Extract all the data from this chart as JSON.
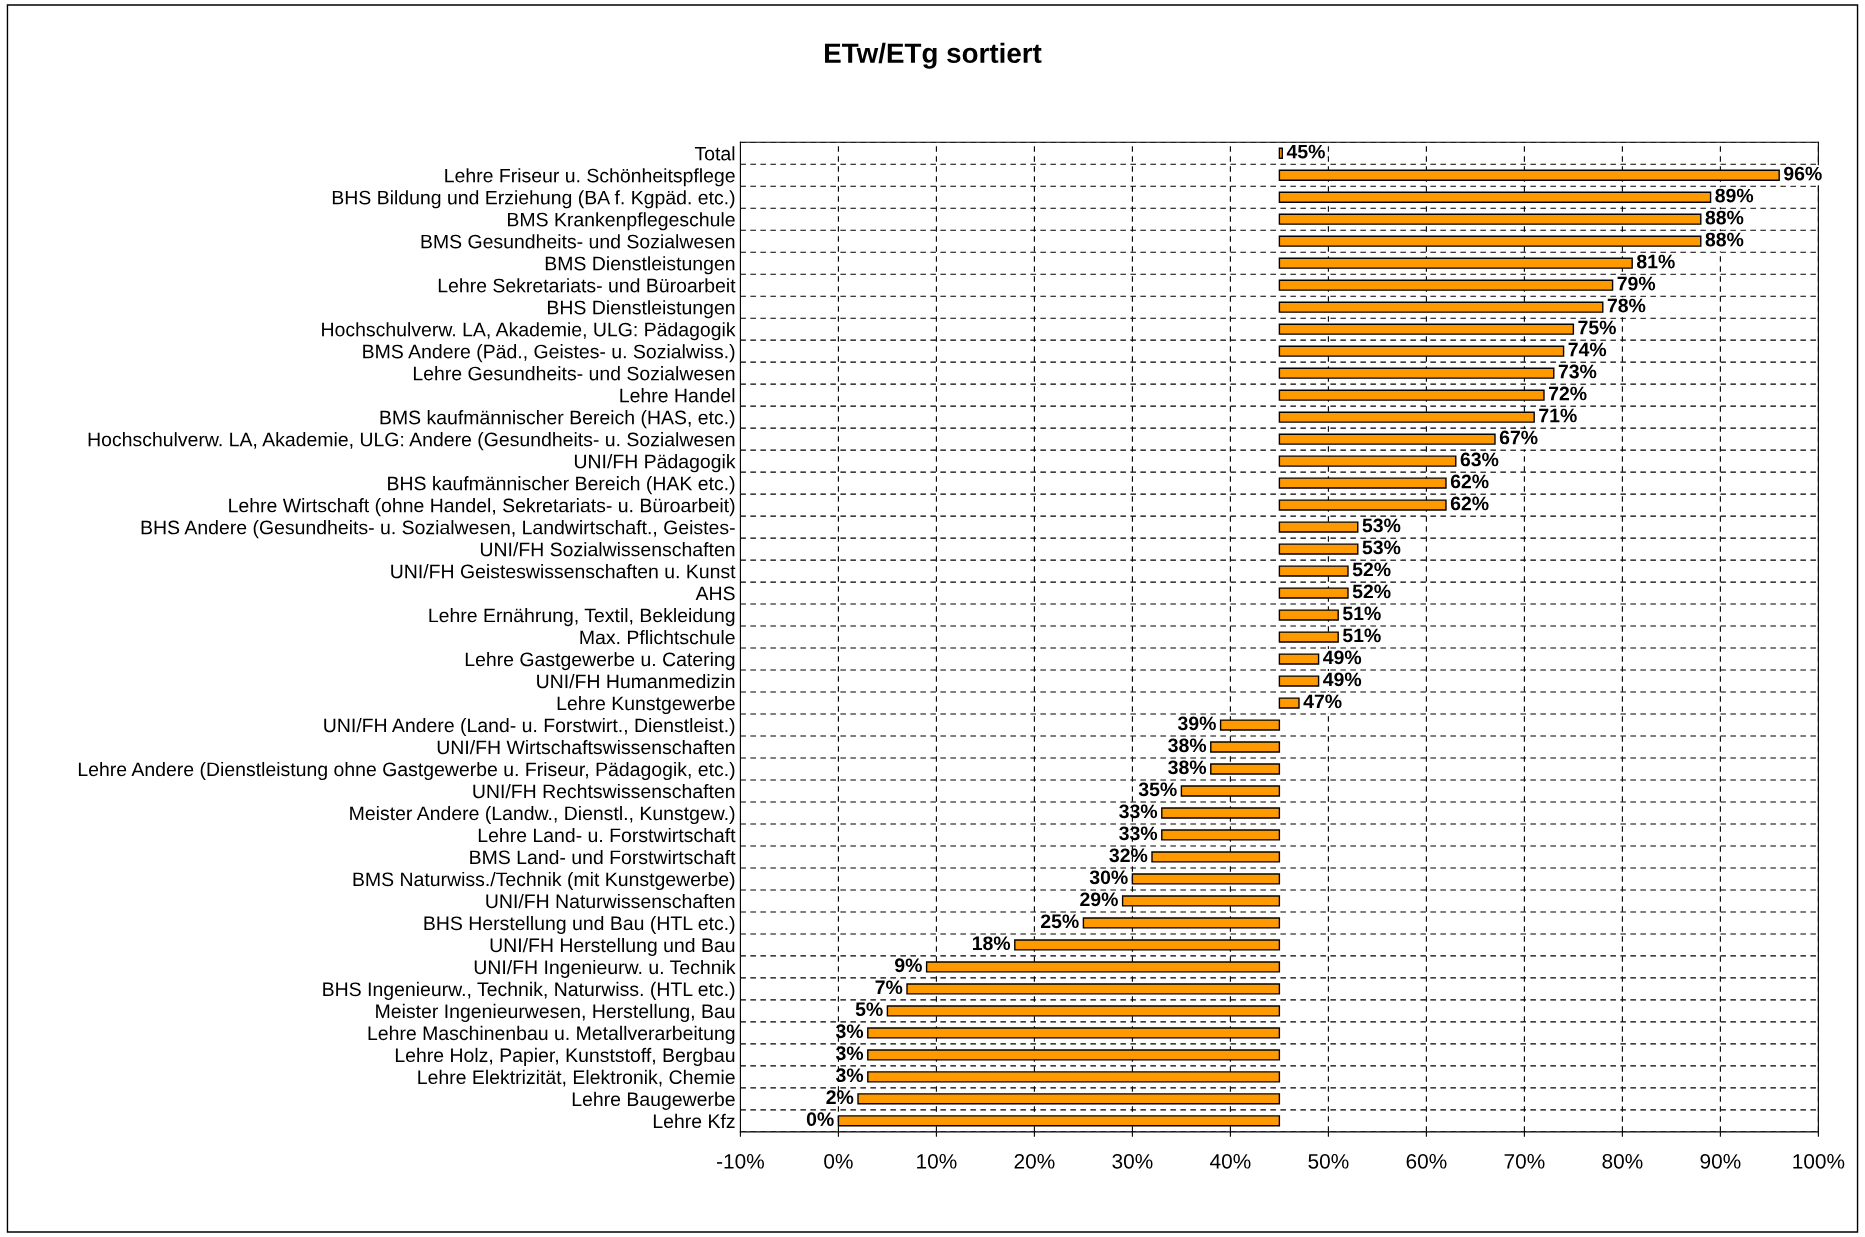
{
  "chart_data": {
    "type": "bar",
    "title": "ETw/ETg sortiert",
    "orientation": "horizontal",
    "categories": [
      "Total",
      "Lehre Friseur u. Schönheitspflege",
      "BHS Bildung und Erziehung (BA f. Kgpäd. etc.)",
      "BMS Krankenpflegeschule",
      "BMS Gesundheits- und Sozialwesen",
      "BMS Dienstleistungen",
      "Lehre Sekretariats- und Büroarbeit",
      "BHS Dienstleistungen",
      "Hochschulverw. LA, Akademie, ULG: Pädagogik",
      "BMS Andere (Päd., Geistes- u. Sozialwiss.)",
      "Lehre Gesundheits- und Sozialwesen",
      "Lehre Handel",
      "BMS kaufmännischer Bereich (HAS, etc.)",
      "Hochschulverw. LA, Akademie, ULG: Andere (Gesundheits- u. Sozialwesen",
      "UNI/FH Pädagogik",
      "BHS kaufmännischer Bereich (HAK etc.)",
      "Lehre Wirtschaft (ohne Handel, Sekretariats- u. Büroarbeit)",
      "BHS Andere (Gesundheits- u. Sozialwesen, Landwirtschaft., Geistes-",
      "UNI/FH Sozialwissenschaften",
      "UNI/FH Geisteswissenschaften u. Kunst",
      "AHS",
      "Lehre Ernährung, Textil, Bekleidung",
      "Max. Pflichtschule",
      "Lehre Gastgewerbe u. Catering",
      "UNI/FH Humanmedizin",
      "Lehre Kunstgewerbe",
      "UNI/FH Andere (Land- u. Forstwirt., Dienstleist.)",
      "UNI/FH Wirtschaftswissenschaften",
      "Lehre Andere (Dienstleistung ohne Gastgewerbe u. Friseur, Pädagogik, etc.)",
      "UNI/FH Rechtswissenschaften",
      "Meister Andere (Landw., Dienstl., Kunstgew.)",
      "Lehre Land- u. Forstwirtschaft",
      "BMS Land- und Forstwirtschaft",
      "BMS Naturwiss./Technik (mit Kunstgewerbe)",
      "UNI/FH Naturwissenschaften",
      "BHS Herstellung und Bau (HTL etc.)",
      "UNI/FH Herstellung und Bau",
      "UNI/FH Ingenieurw. u. Technik",
      "BHS Ingenieurw., Technik, Naturwiss. (HTL etc.)",
      "Meister Ingenieurwesen, Herstellung, Bau",
      "Lehre Maschinenbau u. Metallverarbeitung",
      "Lehre Holz, Papier, Kunststoff, Bergbau",
      "Lehre Elektrizität, Elektronik, Chemie",
      "Lehre Baugewerbe",
      "Lehre Kfz"
    ],
    "base": [
      45,
      45,
      45,
      45,
      45,
      45,
      45,
      45,
      45,
      45,
      45,
      45,
      45,
      45,
      45,
      45,
      45,
      45,
      45,
      45,
      45,
      45,
      45,
      45,
      45,
      45,
      45,
      45,
      45,
      45,
      45,
      45,
      45,
      45,
      45,
      45,
      45,
      45,
      45,
      45,
      45,
      45,
      45,
      45,
      45
    ],
    "values": [
      0.3,
      51,
      44,
      43,
      43,
      36,
      34,
      33,
      30,
      29,
      28,
      27,
      26,
      22,
      18,
      17,
      17,
      8,
      8,
      7,
      7,
      6,
      6,
      4,
      4,
      2,
      -6,
      -7,
      -7,
      -10,
      -12,
      -12,
      -13,
      -15,
      -16,
      -20,
      -27,
      -36,
      -38,
      -40,
      -42,
      -42,
      -42,
      -43,
      -45
    ],
    "value_labels": [
      "45%",
      "96%",
      "89%",
      "88%",
      "88%",
      "81%",
      "79%",
      "78%",
      "75%",
      "74%",
      "73%",
      "72%",
      "71%",
      "67%",
      "63%",
      "62%",
      "62%",
      "53%",
      "53%",
      "52%",
      "52%",
      "51%",
      "51%",
      "49%",
      "49%",
      "47%",
      "39%",
      "38%",
      "38%",
      "35%",
      "33%",
      "33%",
      "32%",
      "30%",
      "29%",
      "25%",
      "18%",
      "9%",
      "7%",
      "5%",
      "3%",
      "3%",
      "3%",
      "2%",
      "0%"
    ],
    "color": "#ff9900",
    "xlim": [
      -10,
      100
    ],
    "xticks": [
      {
        "value": -10,
        "label": "-10%"
      },
      {
        "value": 0,
        "label": "0%"
      },
      {
        "value": 10,
        "label": "10%"
      },
      {
        "value": 20,
        "label": "20%"
      },
      {
        "value": 30,
        "label": "30%"
      },
      {
        "value": 40,
        "label": "40%"
      },
      {
        "value": 50,
        "label": "50%"
      },
      {
        "value": 60,
        "label": "60%"
      },
      {
        "value": 70,
        "label": "70%"
      },
      {
        "value": 80,
        "label": "80%"
      },
      {
        "value": 90,
        "label": "90%"
      },
      {
        "value": 100,
        "label": "100%"
      }
    ],
    "grid": true
  }
}
